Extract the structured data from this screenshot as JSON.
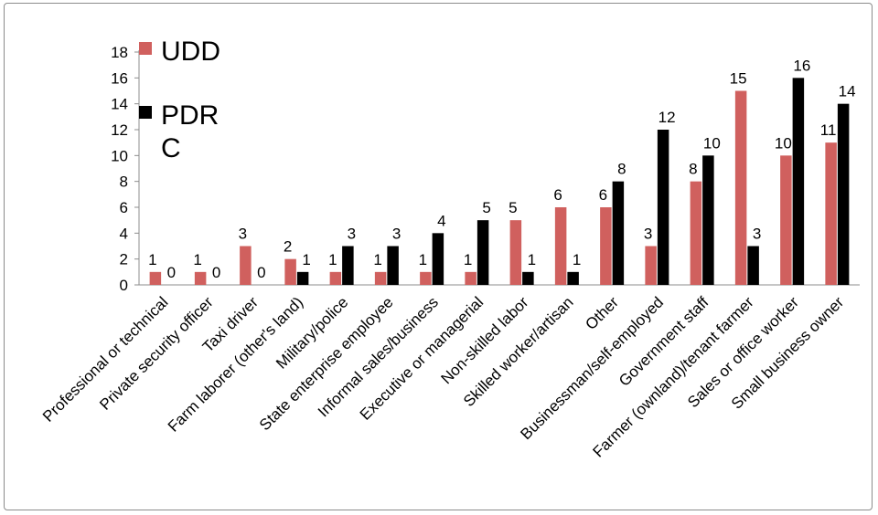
{
  "chart_data": {
    "type": "bar",
    "categories": [
      "Professional or technical",
      "Private security officer",
      "Taxi driver",
      "Farm laborer (other's land)",
      "Military/police",
      "State enterprise employee",
      "Informal sales/business",
      "Executive or managerial",
      "Non-skilled labor",
      "Skilled worker/artisan",
      "Other",
      "Businessman/self-employed",
      "Government staff",
      "Farmer (ownland)/tenant farmer",
      "Sales or office worker",
      "Small business owner"
    ],
    "series": [
      {
        "name": "UDD",
        "color": "#d0605e",
        "values": [
          1,
          1,
          3,
          2,
          1,
          1,
          1,
          1,
          5,
          6,
          6,
          3,
          8,
          15,
          10,
          11
        ]
      },
      {
        "name": "PDRC",
        "color": "#000000",
        "values": [
          0,
          0,
          0,
          1,
          3,
          3,
          4,
          5,
          1,
          1,
          8,
          12,
          10,
          3,
          16,
          14
        ]
      }
    ],
    "legend_lines": [
      [
        "UDD"
      ],
      [
        "PDR",
        "C"
      ]
    ],
    "ylim": [
      0,
      18
    ],
    "yticks": [
      0,
      2,
      4,
      6,
      8,
      10,
      12,
      14,
      16,
      18
    ],
    "legend_position": "top-left",
    "grid": false
  }
}
